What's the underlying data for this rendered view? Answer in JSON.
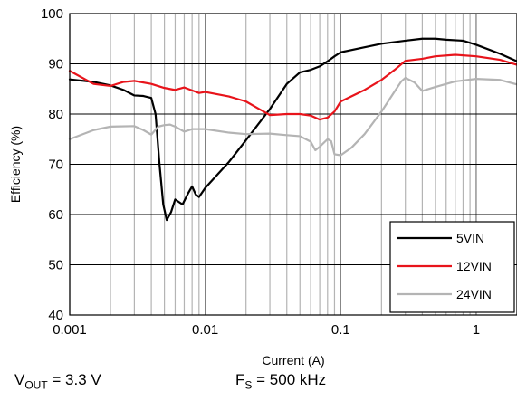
{
  "chart_data": {
    "type": "line",
    "xlabel": "Current (A)",
    "ylabel": "Efficiency (%)",
    "xscale": "log",
    "xlim": [
      0.001,
      2
    ],
    "ylim": [
      40,
      100
    ],
    "xticks": [
      0.001,
      0.01,
      0.1,
      1
    ],
    "xtick_labels": [
      "0.001",
      "0.01",
      "0.1",
      "1"
    ],
    "yticks": [
      40,
      50,
      60,
      70,
      80,
      90,
      100
    ],
    "ytick_labels": [
      "40",
      "50",
      "60",
      "70",
      "80",
      "90",
      "100"
    ],
    "grid": true,
    "legend": "bottom-right",
    "series": [
      {
        "name": "5VIN",
        "color": "#000000",
        "points": [
          [
            0.001,
            86.9
          ],
          [
            0.0015,
            86.4
          ],
          [
            0.002,
            85.7
          ],
          [
            0.0025,
            84.8
          ],
          [
            0.003,
            83.7
          ],
          [
            0.0035,
            83.6
          ],
          [
            0.004,
            83.2
          ],
          [
            0.0043,
            80.0
          ],
          [
            0.0046,
            70.0
          ],
          [
            0.0049,
            62.0
          ],
          [
            0.0052,
            58.9
          ],
          [
            0.0056,
            60.5
          ],
          [
            0.006,
            63.0
          ],
          [
            0.0068,
            62.0
          ],
          [
            0.0075,
            64.3
          ],
          [
            0.008,
            65.6
          ],
          [
            0.0085,
            64.0
          ],
          [
            0.009,
            63.5
          ],
          [
            0.01,
            65.3
          ],
          [
            0.015,
            70.5
          ],
          [
            0.02,
            74.8
          ],
          [
            0.03,
            81.0
          ],
          [
            0.04,
            86.0
          ],
          [
            0.05,
            88.3
          ],
          [
            0.06,
            88.8
          ],
          [
            0.07,
            89.5
          ],
          [
            0.08,
            90.5
          ],
          [
            0.09,
            91.5
          ],
          [
            0.1,
            92.3
          ],
          [
            0.15,
            93.3
          ],
          [
            0.2,
            94.0
          ],
          [
            0.3,
            94.6
          ],
          [
            0.4,
            95.0
          ],
          [
            0.5,
            95.0
          ],
          [
            0.6,
            94.8
          ],
          [
            0.8,
            94.6
          ],
          [
            1.0,
            93.8
          ],
          [
            1.5,
            92.0
          ],
          [
            2.0,
            90.5
          ]
        ]
      },
      {
        "name": "12VIN",
        "color": "#e8141b",
        "points": [
          [
            0.001,
            88.6
          ],
          [
            0.0015,
            86.0
          ],
          [
            0.002,
            85.6
          ],
          [
            0.0025,
            86.4
          ],
          [
            0.003,
            86.6
          ],
          [
            0.004,
            86.0
          ],
          [
            0.005,
            85.2
          ],
          [
            0.006,
            84.8
          ],
          [
            0.007,
            85.3
          ],
          [
            0.008,
            84.7
          ],
          [
            0.009,
            84.2
          ],
          [
            0.01,
            84.4
          ],
          [
            0.012,
            84.0
          ],
          [
            0.015,
            83.5
          ],
          [
            0.02,
            82.5
          ],
          [
            0.025,
            81.0
          ],
          [
            0.03,
            79.8
          ],
          [
            0.04,
            80.0
          ],
          [
            0.05,
            80.0
          ],
          [
            0.06,
            79.7
          ],
          [
            0.07,
            78.9
          ],
          [
            0.08,
            79.3
          ],
          [
            0.09,
            80.5
          ],
          [
            0.1,
            82.5
          ],
          [
            0.15,
            84.8
          ],
          [
            0.2,
            86.8
          ],
          [
            0.25,
            88.8
          ],
          [
            0.3,
            90.6
          ],
          [
            0.4,
            91.0
          ],
          [
            0.5,
            91.5
          ],
          [
            0.7,
            91.8
          ],
          [
            1.0,
            91.5
          ],
          [
            1.5,
            90.8
          ],
          [
            2.0,
            89.8
          ]
        ]
      },
      {
        "name": "24VIN",
        "color": "#b4b4b4",
        "points": [
          [
            0.001,
            75.0
          ],
          [
            0.0015,
            76.8
          ],
          [
            0.002,
            77.5
          ],
          [
            0.003,
            77.6
          ],
          [
            0.0035,
            76.8
          ],
          [
            0.004,
            75.9
          ],
          [
            0.0045,
            77.5
          ],
          [
            0.005,
            77.8
          ],
          [
            0.0055,
            77.9
          ],
          [
            0.006,
            77.5
          ],
          [
            0.007,
            76.5
          ],
          [
            0.008,
            77.0
          ],
          [
            0.01,
            77.0
          ],
          [
            0.015,
            76.3
          ],
          [
            0.02,
            76.0
          ],
          [
            0.03,
            76.1
          ],
          [
            0.04,
            75.8
          ],
          [
            0.05,
            75.6
          ],
          [
            0.06,
            74.5
          ],
          [
            0.065,
            72.8
          ],
          [
            0.07,
            73.5
          ],
          [
            0.08,
            75.0
          ],
          [
            0.085,
            74.6
          ],
          [
            0.09,
            72.0
          ],
          [
            0.1,
            71.8
          ],
          [
            0.12,
            73.3
          ],
          [
            0.15,
            76.0
          ],
          [
            0.2,
            80.5
          ],
          [
            0.25,
            84.5
          ],
          [
            0.28,
            86.5
          ],
          [
            0.3,
            87.2
          ],
          [
            0.35,
            86.3
          ],
          [
            0.4,
            84.6
          ],
          [
            0.5,
            85.4
          ],
          [
            0.7,
            86.5
          ],
          [
            1.0,
            87.0
          ],
          [
            1.5,
            86.8
          ],
          [
            2.0,
            85.9
          ]
        ]
      }
    ]
  },
  "footer": {
    "vout_label": "V",
    "vout_sub": "OUT",
    "vout_value": " = 3.3 V",
    "fs_label": "F",
    "fs_sub": "S",
    "fs_value": " = 500 kHz"
  }
}
